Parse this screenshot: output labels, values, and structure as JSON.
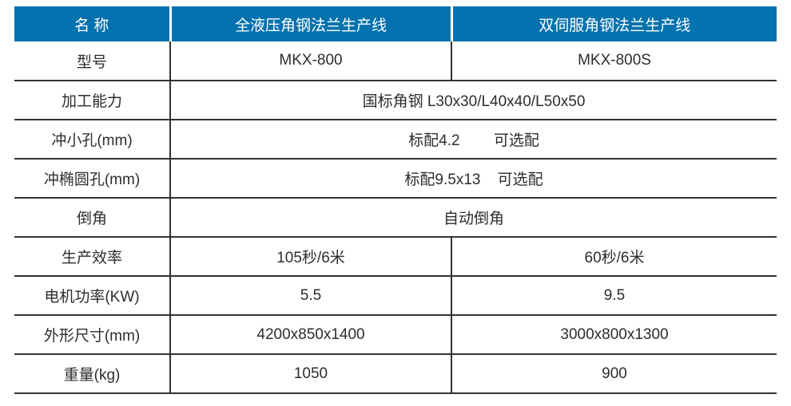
{
  "table": {
    "colors": {
      "accent": "#0472AE",
      "header_text": "#FFFFFF",
      "body_text": "#2D2D2D",
      "grid_line": "#323232"
    },
    "header": {
      "name_label": "名 称",
      "product1": "全液压角钢法兰生产线",
      "product2": "双伺服角钢法兰生产线"
    },
    "rows": [
      {
        "label": "型号",
        "col2": "MKX-800",
        "col3": "MKX-800S"
      },
      {
        "label": "加工能力",
        "value": "国标角钢 L30x30/L40x40/L50x50"
      },
      {
        "label": "冲小孔(mm)",
        "value": "标配4.2        可选配"
      },
      {
        "label": "冲椭圆孔(mm)",
        "value": "标配9.5x13    可选配"
      },
      {
        "label": "倒角",
        "value": "自动倒角"
      },
      {
        "label": "生产效率",
        "col2": "105秒/6米",
        "col3": "60秒/6米"
      },
      {
        "label": "电机功率(KW)",
        "col2": "5.5",
        "col3": "9.5"
      },
      {
        "label": "外形尺寸(mm)",
        "col2": "4200x850x1400",
        "col3": "3000x800x1300"
      },
      {
        "label": "重量(kg)",
        "col2": "1050",
        "col3": "900"
      }
    ]
  }
}
